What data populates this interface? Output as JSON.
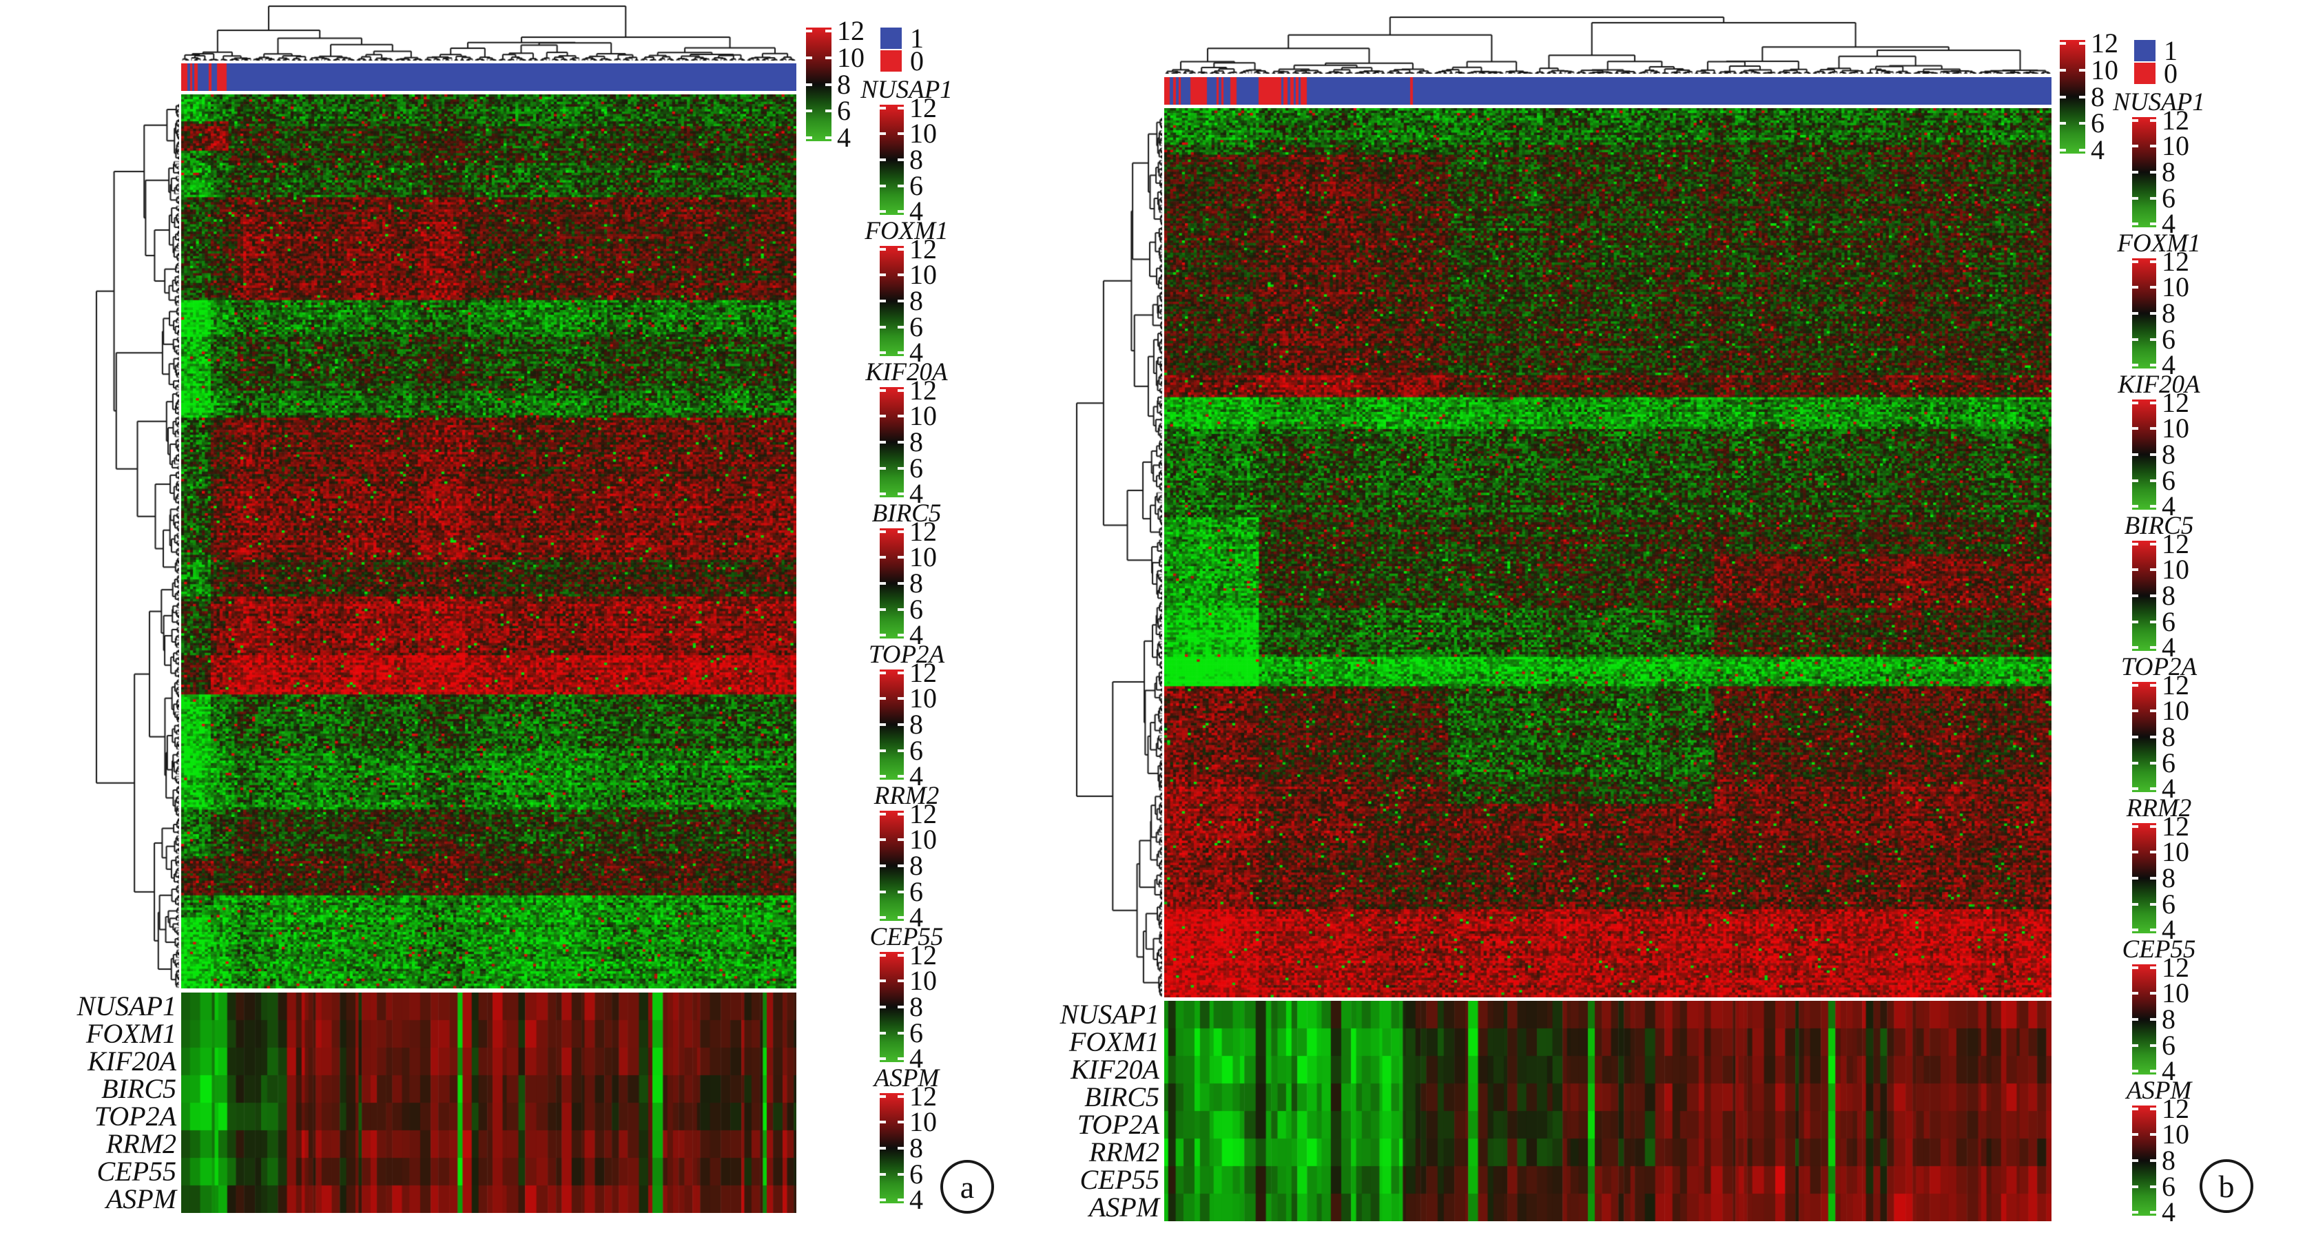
{
  "figure_labels": {
    "panel_a": "a",
    "panel_b": "b"
  },
  "genes": [
    "NUSAP1",
    "FOXM1",
    "KIF20A",
    "BIRC5",
    "TOP2A",
    "RRM2",
    "CEP55",
    "ASPM"
  ],
  "scale_ticks": [
    "12",
    "10",
    "8",
    "6",
    "4"
  ],
  "legend": {
    "items": [
      {
        "label": "1",
        "color": "#3a4da8"
      },
      {
        "label": "0",
        "color": "#e12226"
      }
    ]
  },
  "colors": {
    "class1_blue": "#3a4da8",
    "class0_red": "#e12226",
    "scale_top_red": "#e01e22",
    "scale_mid_black": "#0d0d0b",
    "scale_bottom_green": "#45bb2b",
    "dendrogram_line": "#161616",
    "dendrogram_leaf": "#8d8d8d",
    "text": "#111111",
    "background": "#ffffff"
  },
  "chart_data": [
    {
      "type": "heatmap",
      "panel": "a",
      "description": "Hierarchically clustered gene-expression heatmap (green=low, black=mid, red=high) with column dendrogram, sample class bar (1=blue, 0=red), row dendrogram, and lower 8-row hub-gene heatmap",
      "value_scale": {
        "min": 4,
        "max": 12,
        "ticks": [
          12,
          10,
          8,
          6,
          4
        ],
        "colormap": "green-black-red"
      },
      "class_bar": {
        "classes": [
          "1",
          "0"
        ],
        "segments": [
          [
            "0",
            9
          ],
          [
            "1",
            4
          ],
          [
            "0",
            3
          ],
          [
            "1",
            3
          ],
          [
            "0",
            5
          ],
          [
            "1",
            16
          ],
          [
            "0",
            4
          ],
          [
            "1",
            8
          ],
          [
            "0",
            14
          ],
          [
            "1",
            827
          ]
        ]
      },
      "hub_genes": [
        "NUSAP1",
        "FOXM1",
        "KIF20A",
        "BIRC5",
        "TOP2A",
        "RRM2",
        "CEP55",
        "ASPM"
      ],
      "render": {
        "seed": 11,
        "n_cols": 208,
        "n_rows": 365,
        "bands": [
          [
            0,
            0.035,
            -0.3
          ],
          [
            0.035,
            0.075,
            -0.05
          ],
          [
            0.075,
            0.115,
            -0.2
          ],
          [
            0.115,
            0.14,
            0.25
          ],
          [
            0.14,
            0.23,
            0.18
          ],
          [
            0.23,
            0.27,
            -0.4
          ],
          [
            0.27,
            0.33,
            -0.15
          ],
          [
            0.33,
            0.36,
            -0.35
          ],
          [
            0.36,
            0.43,
            0.3
          ],
          [
            0.43,
            0.52,
            0.42
          ],
          [
            0.52,
            0.56,
            0.1
          ],
          [
            0.56,
            0.625,
            0.5
          ],
          [
            0.625,
            0.67,
            0.72
          ],
          [
            0.67,
            0.73,
            -0.25
          ],
          [
            0.73,
            0.8,
            -0.45
          ],
          [
            0.8,
            0.85,
            -0.05
          ],
          [
            0.85,
            0.895,
            0.12
          ],
          [
            0.895,
            1,
            -0.55
          ]
        ],
        "col_mods": [
          [
            0,
            0.045,
            -0.28
          ],
          [
            0.045,
            0.09,
            -0.08
          ],
          [
            0.09,
            0.5,
            0.06
          ],
          [
            0.5,
            1,
            0
          ]
        ],
        "patches": [
          [
            0,
            0.075,
            0.03,
            0.062,
            0.75
          ],
          [
            0.1,
            0.45,
            0.14,
            0.23,
            0.2
          ],
          [
            0,
            0.045,
            0.23,
            0.75,
            -0.25
          ],
          [
            0,
            0.05,
            0.855,
            0.92,
            0.45
          ]
        ],
        "bottom_bias": [
          [
            0,
            0.07,
            -0.6
          ],
          [
            0.07,
            0.16,
            -0.15
          ],
          [
            0.16,
            0.62,
            0.35
          ],
          [
            0.62,
            1,
            0.3
          ]
        ]
      }
    },
    {
      "type": "heatmap",
      "panel": "b",
      "description": "Hierarchically clustered gene-expression heatmap (green=low, black=mid, red=high) with column dendrogram, sample class bar (1=blue, 0=red), row dendrogram, and lower 8-row hub-gene heatmap",
      "value_scale": {
        "min": 4,
        "max": 12,
        "ticks": [
          12,
          10,
          8,
          6,
          4
        ],
        "colormap": "green-black-red"
      },
      "class_bar": {
        "classes": [
          "1",
          "0"
        ],
        "segments": [
          [
            "0",
            8
          ],
          [
            "1",
            5
          ],
          [
            "0",
            4
          ],
          [
            "1",
            4
          ],
          [
            "0",
            3
          ],
          [
            "1",
            14
          ],
          [
            "0",
            24
          ],
          [
            "1",
            14
          ],
          [
            "0",
            3
          ],
          [
            "1",
            4
          ],
          [
            "0",
            3
          ],
          [
            "1",
            10
          ],
          [
            "0",
            9
          ],
          [
            "1",
            32
          ],
          [
            "0",
            33
          ],
          [
            "1",
            3
          ],
          [
            "0",
            6
          ],
          [
            "1",
            4
          ],
          [
            "0",
            5
          ],
          [
            "1",
            3
          ],
          [
            "0",
            4
          ],
          [
            "1",
            3
          ],
          [
            "0",
            9
          ],
          [
            "1",
            150
          ],
          [
            "0",
            4
          ],
          [
            "1",
            927
          ]
        ]
      },
      "hub_genes": [
        "NUSAP1",
        "FOXM1",
        "KIF20A",
        "BIRC5",
        "TOP2A",
        "RRM2",
        "CEP55",
        "ASPM"
      ],
      "render": {
        "seed": 23,
        "n_cols": 300,
        "n_rows": 363,
        "bands": [
          [
            0,
            0.04,
            -0.35
          ],
          [
            0.04,
            0.145,
            -0.12
          ],
          [
            0.145,
            0.3,
            -0.08
          ],
          [
            0.3,
            0.325,
            0.18
          ],
          [
            0.325,
            0.36,
            -0.6
          ],
          [
            0.36,
            0.46,
            -0.22
          ],
          [
            0.46,
            0.56,
            -0.05
          ],
          [
            0.56,
            0.615,
            -0.3
          ],
          [
            0.615,
            0.648,
            -0.72
          ],
          [
            0.648,
            0.75,
            0.12
          ],
          [
            0.75,
            0.83,
            0.28
          ],
          [
            0.83,
            0.9,
            0.22
          ],
          [
            0.9,
            1,
            0.62
          ]
        ],
        "col_mods": [
          [
            0,
            0.105,
            -0.12
          ],
          [
            0.105,
            0.32,
            0.02
          ],
          [
            0.32,
            0.62,
            0.03
          ],
          [
            0.62,
            1,
            0.08
          ]
        ],
        "patches": [
          [
            0,
            0.32,
            0.05,
            0.3,
            0.3
          ],
          [
            0,
            0.105,
            0.46,
            0.648,
            -0.45
          ],
          [
            0,
            0.105,
            0.648,
            1,
            0.4
          ],
          [
            0.62,
            1,
            0.5,
            0.615,
            0.3
          ],
          [
            0.32,
            0.62,
            0.648,
            0.78,
            -0.4
          ],
          [
            0,
            0.32,
            0.3,
            0.325,
            0.35
          ]
        ],
        "bottom_bias": [
          [
            0,
            0.28,
            -0.65
          ],
          [
            0.28,
            0.55,
            0.1
          ],
          [
            0.55,
            1,
            0.38
          ]
        ]
      }
    }
  ]
}
